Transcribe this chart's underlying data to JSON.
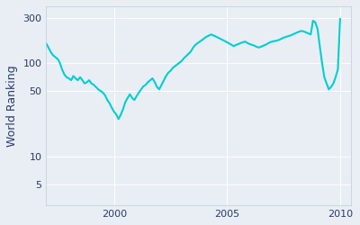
{
  "ylabel": "World Ranking",
  "line_color": "#00CED1",
  "bg_color": "#E8EEF4",
  "fig_bg_color": "#E8EEF4",
  "linewidth": 1.5,
  "dates": [
    1997.0,
    1997.1,
    1997.2,
    1997.3,
    1997.4,
    1997.5,
    1997.6,
    1997.7,
    1997.8,
    1997.9,
    1998.0,
    1998.1,
    1998.2,
    1998.3,
    1998.4,
    1998.5,
    1998.6,
    1998.7,
    1998.8,
    1998.9,
    1999.0,
    1999.1,
    1999.2,
    1999.3,
    1999.4,
    1999.5,
    1999.6,
    1999.7,
    1999.8,
    1999.9,
    2000.0,
    2000.1,
    2000.2,
    2000.3,
    2000.4,
    2000.5,
    2000.6,
    2000.7,
    2000.8,
    2000.9,
    2001.0,
    2001.1,
    2001.2,
    2001.3,
    2001.4,
    2001.5,
    2001.6,
    2001.7,
    2001.8,
    2001.9,
    2002.0,
    2002.1,
    2002.2,
    2002.3,
    2002.4,
    2002.5,
    2002.6,
    2002.7,
    2002.8,
    2002.9,
    2003.0,
    2003.1,
    2003.2,
    2003.3,
    2003.4,
    2003.5,
    2003.6,
    2003.7,
    2003.8,
    2003.9,
    2004.0,
    2004.1,
    2004.2,
    2004.3,
    2004.4,
    2004.5,
    2004.6,
    2004.7,
    2004.8,
    2004.9,
    2005.0,
    2005.1,
    2005.2,
    2005.3,
    2005.4,
    2005.5,
    2005.6,
    2005.7,
    2005.8,
    2005.9,
    2006.0,
    2006.1,
    2006.2,
    2006.3,
    2006.4,
    2006.5,
    2006.6,
    2006.7,
    2006.8,
    2006.9,
    2007.0,
    2007.1,
    2007.2,
    2007.3,
    2007.4,
    2007.5,
    2007.6,
    2007.7,
    2007.8,
    2007.9,
    2008.0,
    2008.1,
    2008.2,
    2008.3,
    2008.4,
    2008.5,
    2008.6,
    2008.7,
    2008.8,
    2008.9,
    2009.0,
    2009.1,
    2009.2,
    2009.3,
    2009.4,
    2009.5,
    2009.6,
    2009.7,
    2009.8,
    2009.9,
    2010.0
  ],
  "rankings": [
    160,
    145,
    130,
    120,
    115,
    110,
    100,
    85,
    75,
    70,
    68,
    65,
    72,
    68,
    65,
    70,
    65,
    60,
    62,
    65,
    60,
    58,
    55,
    52,
    50,
    48,
    45,
    40,
    37,
    33,
    30,
    28,
    25,
    28,
    32,
    38,
    42,
    46,
    42,
    40,
    44,
    48,
    52,
    56,
    58,
    62,
    65,
    68,
    62,
    55,
    52,
    58,
    65,
    72,
    78,
    82,
    88,
    92,
    96,
    100,
    105,
    112,
    118,
    125,
    132,
    145,
    155,
    162,
    168,
    175,
    182,
    190,
    195,
    200,
    195,
    190,
    185,
    180,
    175,
    170,
    165,
    160,
    155,
    150,
    155,
    158,
    162,
    165,
    168,
    162,
    158,
    155,
    152,
    148,
    145,
    148,
    152,
    155,
    160,
    165,
    168,
    170,
    172,
    175,
    180,
    185,
    188,
    192,
    195,
    200,
    205,
    210,
    215,
    218,
    215,
    210,
    205,
    200,
    280,
    270,
    230,
    150,
    100,
    70,
    60,
    52,
    55,
    60,
    70,
    85,
    295
  ],
  "yticks": [
    5,
    10,
    50,
    100,
    300
  ],
  "xlim": [
    1997.0,
    2010.5
  ],
  "ylim": [
    3,
    400
  ],
  "xticks": [
    2000,
    2005,
    2010
  ]
}
